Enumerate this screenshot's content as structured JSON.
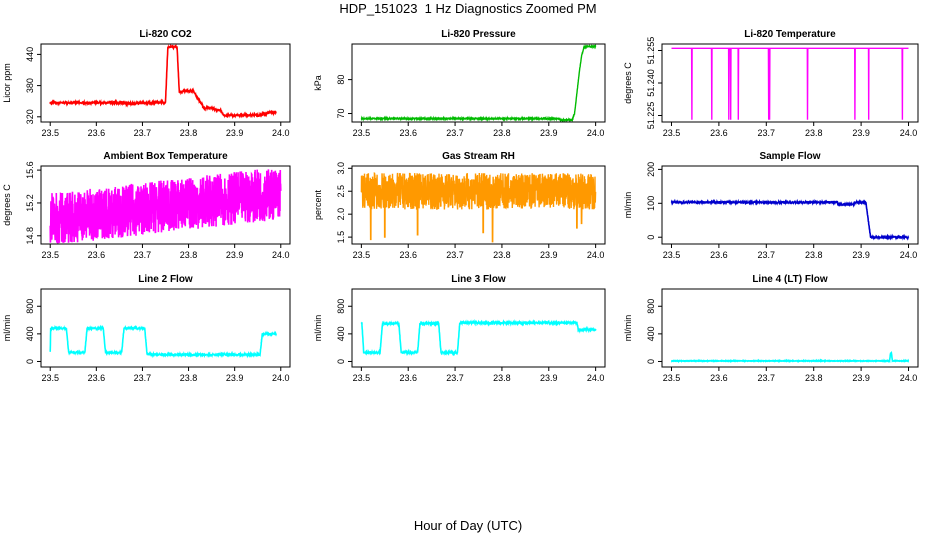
{
  "figure": {
    "title": "HDP_151023  1 Hz Diagnostics Zoomed PM",
    "xlabel": "Hour of Day (UTC)"
  },
  "chart_data": [
    {
      "type": "line",
      "title": "Li-820 CO2",
      "ylabel": "Licor ppm",
      "color": "#ff0000",
      "xlim": [
        23.48,
        24.02
      ],
      "xticks": [
        "23.5",
        "23.6",
        "23.7",
        "23.8",
        "23.9",
        "24.0"
      ],
      "ylim": [
        310,
        460
      ],
      "yticks": [
        320,
        380,
        440
      ],
      "series": [
        {
          "x": [
            23.5,
            23.66,
            23.661,
            23.75,
            23.755,
            23.762,
            23.775,
            23.78,
            23.8,
            23.81,
            23.835,
            23.84,
            23.87,
            23.875,
            23.96,
            23.962,
            23.965,
            23.97,
            23.99
          ],
          "y": [
            347,
            347,
            345,
            348,
            452,
            455,
            455,
            368,
            370,
            370,
            335,
            338,
            332,
            323,
            323,
            330,
            322,
            328,
            328
          ],
          "noise": 2
        }
      ]
    },
    {
      "type": "line",
      "title": "Li-820 Pressure",
      "ylabel": "kPa",
      "color": "#00bb00",
      "xlim": [
        23.48,
        24.02
      ],
      "xticks": [
        "23.5",
        "23.6",
        "23.7",
        "23.8",
        "23.9",
        "24.0"
      ],
      "ylim": [
        67.5,
        90.5
      ],
      "yticks": [
        70,
        80
      ],
      "series": [
        {
          "x": [
            23.5,
            23.92,
            23.925,
            23.95,
            23.955,
            23.96,
            23.965,
            23.97,
            23.975,
            23.98,
            24.0
          ],
          "y": [
            68.5,
            68.5,
            68.1,
            68.1,
            70,
            76,
            82,
            87,
            89.5,
            89.8,
            89.8
          ],
          "noise": 0.15
        }
      ]
    },
    {
      "type": "line",
      "title": "Li-820 Temperature",
      "ylabel": "degrees C",
      "color": "#ff00ff",
      "xlim": [
        23.48,
        24.02
      ],
      "xticks": [
        "23.5",
        "23.6",
        "23.7",
        "23.8",
        "23.9",
        "24.0"
      ],
      "ylim": [
        51.222,
        51.258
      ],
      "yticks": [
        "51.225",
        "51.240",
        "51.255"
      ],
      "series": [
        {
          "baseline": 51.256,
          "spike_low": 51.223,
          "spikes": [
            23.543,
            23.585,
            23.621,
            23.625,
            23.641,
            23.705,
            23.707,
            23.787,
            23.787,
            23.887,
            23.916,
            23.987
          ]
        }
      ]
    },
    {
      "type": "line",
      "title": "Ambient Box Temperature",
      "ylabel": "degrees C",
      "color": "#ff00ff",
      "xlim": [
        23.48,
        24.02
      ],
      "xticks": [
        "23.5",
        "23.6",
        "23.7",
        "23.8",
        "23.9",
        "24.0"
      ],
      "ylim": [
        14.7,
        15.65
      ],
      "yticks": [
        "14.8",
        "15.2",
        "15.6"
      ],
      "series": [
        {
          "x": [
            23.5,
            24.0
          ],
          "y": [
            15.0,
            15.32
          ],
          "noise": 0.32
        }
      ]
    },
    {
      "type": "line",
      "title": "Gas Stream RH",
      "ylabel": "percent",
      "color": "#ff9900",
      "xlim": [
        23.48,
        24.02
      ],
      "xticks": [
        "23.5",
        "23.6",
        "23.7",
        "23.8",
        "23.9",
        "24.0"
      ],
      "ylim": [
        1.35,
        3.05
      ],
      "yticks": [
        "1.5",
        "2.0",
        "2.5",
        "3.0"
      ],
      "series": [
        {
          "x": [
            23.5,
            24.0
          ],
          "y": [
            2.5,
            2.5
          ],
          "noise": 0.4,
          "dips": [
            [
              23.52,
              1.45
            ],
            [
              23.55,
              1.5
            ],
            [
              23.62,
              1.55
            ],
            [
              23.76,
              1.6
            ],
            [
              23.78,
              1.4
            ],
            [
              23.96,
              1.7
            ],
            [
              23.97,
              1.8
            ]
          ]
        }
      ]
    },
    {
      "type": "line",
      "title": "Sample Flow",
      "ylabel": "ml/min",
      "color": "#0000cc",
      "xlim": [
        23.48,
        24.02
      ],
      "xticks": [
        "23.5",
        "23.6",
        "23.7",
        "23.8",
        "23.9",
        "24.0"
      ],
      "ylim": [
        -20,
        210
      ],
      "yticks": [
        0,
        100,
        200
      ],
      "series": [
        {
          "x": [
            23.5,
            23.85,
            23.851,
            23.885,
            23.886,
            23.91,
            23.92,
            23.93,
            24.0
          ],
          "y": [
            103,
            103,
            97,
            97,
            103,
            103,
            0,
            0,
            0
          ],
          "noise": 2
        }
      ]
    },
    {
      "type": "line",
      "title": "Line 2 Flow",
      "ylabel": "ml/min",
      "color": "#00ffff",
      "xlim": [
        23.48,
        24.02
      ],
      "xticks": [
        "23.5",
        "23.6",
        "23.7",
        "23.8",
        "23.9",
        "24.0"
      ],
      "ylim": [
        -80,
        1050
      ],
      "yticks": [
        0,
        400,
        800
      ],
      "series": [
        {
          "x": [
            23.5,
            23.501,
            23.535,
            23.54,
            23.575,
            23.58,
            23.615,
            23.62,
            23.655,
            23.66,
            23.705,
            23.71,
            23.955,
            23.96,
            23.99
          ],
          "y": [
            130,
            480,
            480,
            130,
            130,
            480,
            480,
            130,
            130,
            480,
            480,
            100,
            100,
            400,
            400
          ],
          "noise": 12
        }
      ]
    },
    {
      "type": "line",
      "title": "Line 3 Flow",
      "ylabel": "ml/min",
      "color": "#00ffff",
      "xlim": [
        23.48,
        24.02
      ],
      "xticks": [
        "23.5",
        "23.6",
        "23.7",
        "23.8",
        "23.9",
        "24.0"
      ],
      "ylim": [
        -80,
        1050
      ],
      "yticks": [
        0,
        400,
        800
      ],
      "series": [
        {
          "x": [
            23.5,
            23.501,
            23.505,
            23.54,
            23.545,
            23.58,
            23.585,
            23.62,
            23.625,
            23.665,
            23.67,
            23.705,
            23.71,
            23.96,
            23.963,
            24.0
          ],
          "y": [
            560,
            560,
            130,
            130,
            550,
            550,
            130,
            130,
            550,
            550,
            130,
            130,
            560,
            560,
            460,
            460
          ],
          "noise": 14
        }
      ]
    },
    {
      "type": "line",
      "title": "Line 4 (LT) Flow",
      "ylabel": "ml/min",
      "color": "#00ffff",
      "xlim": [
        23.48,
        24.02
      ],
      "xticks": [
        "23.5",
        "23.6",
        "23.7",
        "23.8",
        "23.9",
        "24.0"
      ],
      "ylim": [
        -80,
        1050
      ],
      "yticks": [
        0,
        400,
        800
      ],
      "series": [
        {
          "x": [
            23.5,
            23.96,
            23.962,
            23.964,
            23.966,
            24.0
          ],
          "y": [
            8,
            8,
            120,
            120,
            8,
            8
          ],
          "noise": 3
        }
      ]
    }
  ]
}
